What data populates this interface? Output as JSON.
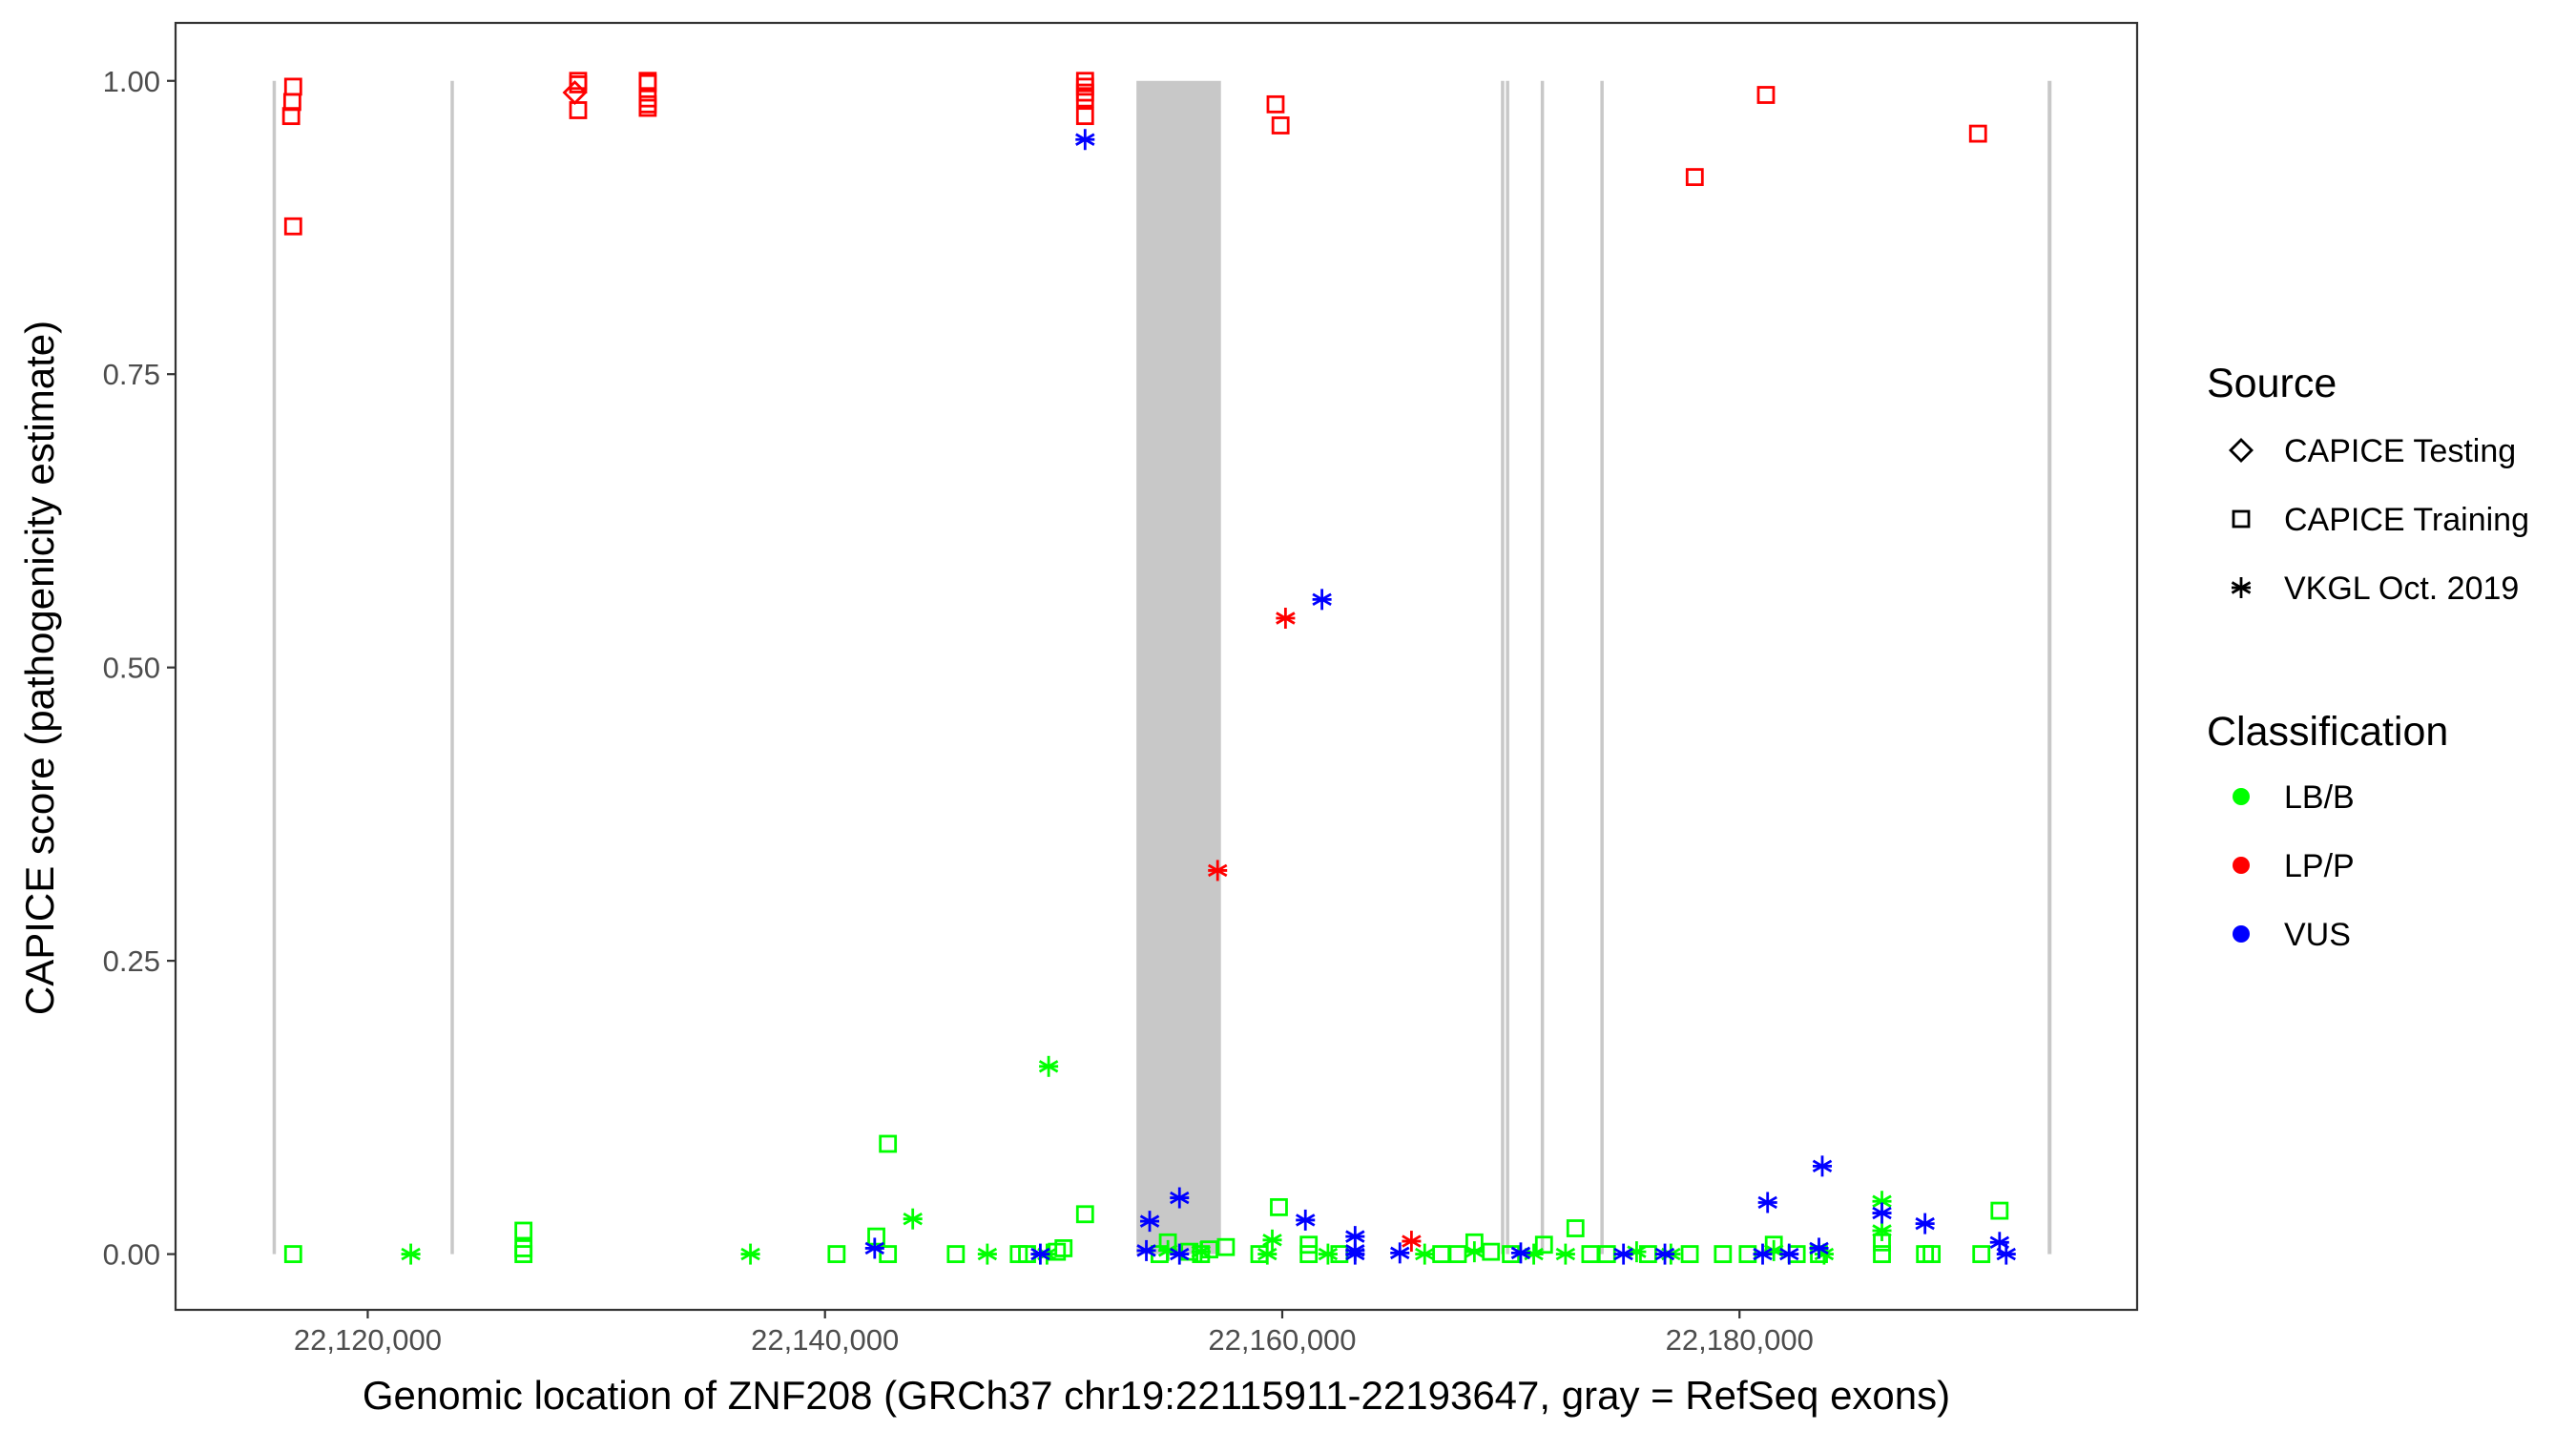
{
  "chart_data": {
    "type": "scatter",
    "xlabel": "Genomic location of ZNF208 (GRCh37 chr19:22115911-22193647, gray = RefSeq exons)",
    "ylabel": "CAPICE score (pathogenicity estimate)",
    "xlim": [
      22111594,
      22197391
    ],
    "ylim": [
      -0.0475,
      1.0494
    ],
    "x_ticks": [
      22120000,
      22140000,
      22160000,
      22180000
    ],
    "x_tick_labels": [
      "22,120,000",
      "22,140,000",
      "22,160,000",
      "22,180,000"
    ],
    "y_ticks": [
      0,
      0.25,
      0.5,
      0.75,
      1.0
    ],
    "y_tick_labels": [
      "0.00",
      "0.25",
      "0.50",
      "0.75",
      "1.00"
    ],
    "grid": false,
    "exon_color": "#c8c8c8",
    "exons": [
      [
        22115911,
        22115911
      ],
      [
        22123696,
        22123696
      ],
      [
        22153623,
        22157319
      ],
      [
        22169638,
        22169638
      ],
      [
        22169855,
        22169855
      ],
      [
        22171377,
        22171377
      ],
      [
        22173986,
        22173986
      ],
      [
        22193478,
        22193647
      ]
    ],
    "legend_placement": "right",
    "legend": {
      "source_title": "Source",
      "sources": [
        {
          "label": "CAPICE Testing",
          "shape": "diamond"
        },
        {
          "label": "CAPICE Training",
          "shape": "square"
        },
        {
          "label": "VKGL Oct. 2019",
          "shape": "asterisk"
        }
      ],
      "class_title": "Classification",
      "classes": [
        {
          "label": "LB/B",
          "color": "#00ff00"
        },
        {
          "label": "LP/P",
          "color": "#ff0000"
        },
        {
          "label": "VUS",
          "color": "#0000ff"
        }
      ]
    },
    "series": [
      {
        "source": "CAPICE Training",
        "classification": "LP/P",
        "points": [
          [
            22116739,
            0.995
          ],
          [
            22116700,
            0.982
          ],
          [
            22116650,
            0.97
          ],
          [
            22116739,
            0.876
          ],
          [
            22129203,
            1.0
          ],
          [
            22129203,
            0.997
          ],
          [
            22129203,
            0.975
          ],
          [
            22132246,
            1.0
          ],
          [
            22132246,
            0.998
          ],
          [
            22132246,
            0.985
          ],
          [
            22132246,
            0.98
          ],
          [
            22132246,
            0.977
          ],
          [
            22151375,
            1.0
          ],
          [
            22151375,
            0.995
          ],
          [
            22151375,
            0.99
          ],
          [
            22151375,
            0.985
          ],
          [
            22151375,
            0.97
          ],
          [
            22159708,
            0.98
          ],
          [
            22159925,
            0.962
          ],
          [
            22178041,
            0.918
          ],
          [
            22181157,
            0.988
          ],
          [
            22190432,
            0.955
          ]
        ]
      },
      {
        "source": "CAPICE Testing",
        "classification": "LP/P",
        "points": [
          [
            22129058,
            0.99
          ]
        ]
      },
      {
        "source": "CAPICE Training",
        "classification": "LB/B",
        "points": [
          [
            22116739,
            0
          ],
          [
            22126812,
            0.02
          ],
          [
            22126812,
            0.005
          ],
          [
            22126812,
            0
          ],
          [
            22140507,
            0
          ],
          [
            22142246,
            0.015
          ],
          [
            22142752,
            0.094
          ],
          [
            22142752,
            0
          ],
          [
            22145723,
            0
          ],
          [
            22148477,
            0
          ],
          [
            22148839,
            0
          ],
          [
            22150143,
            0.002
          ],
          [
            22150433,
            0.005
          ],
          [
            22151375,
            0.034
          ],
          [
            22154635,
            0
          ],
          [
            22154997,
            0.01
          ],
          [
            22155940,
            0.002
          ],
          [
            22156447,
            0
          ],
          [
            22156809,
            0.004
          ],
          [
            22157534,
            0.006
          ],
          [
            22159000,
            0
          ],
          [
            22159853,
            0.04
          ],
          [
            22161157,
            0.008
          ],
          [
            22161157,
            0
          ],
          [
            22162500,
            0
          ],
          [
            22166955,
            0
          ],
          [
            22167679,
            0
          ],
          [
            22168404,
            0.01
          ],
          [
            22169129,
            0.002
          ],
          [
            22170000,
            0
          ],
          [
            22171447,
            0.008
          ],
          [
            22172823,
            0.022
          ],
          [
            22173475,
            0
          ],
          [
            22174200,
            0
          ],
          [
            22176000,
            0
          ],
          [
            22177823,
            0
          ],
          [
            22179273,
            0
          ],
          [
            22180360,
            0
          ],
          [
            22181500,
            0.008
          ],
          [
            22182500,
            0
          ],
          [
            22183475,
            0
          ],
          [
            22186229,
            0.01
          ],
          [
            22186229,
            0
          ],
          [
            22188113,
            0
          ],
          [
            22188403,
            0
          ],
          [
            22190577,
            0
          ],
          [
            22191374,
            0.037
          ]
        ]
      },
      {
        "source": "VKGL Oct. 2019",
        "classification": "LB/B",
        "points": [
          [
            22121884,
            0
          ],
          [
            22136739,
            0
          ],
          [
            22143839,
            0.03
          ],
          [
            22147100,
            0
          ],
          [
            22149709,
            0
          ],
          [
            22149781,
            0.16
          ],
          [
            22155000,
            0.003
          ],
          [
            22156447,
            0.002
          ],
          [
            22159563,
            0.012
          ],
          [
            22159346,
            0
          ],
          [
            22162000,
            0
          ],
          [
            22166230,
            0
          ],
          [
            22168404,
            0.002
          ],
          [
            22171000,
            0
          ],
          [
            22172389,
            0
          ],
          [
            22175500,
            0.002
          ],
          [
            22177000,
            0
          ],
          [
            22181500,
            0.003
          ],
          [
            22183700,
            0
          ],
          [
            22186229,
            0.045
          ],
          [
            22186229,
            0.02
          ]
        ]
      },
      {
        "source": "VKGL Oct. 2019",
        "classification": "VUS",
        "points": [
          [
            22142174,
            0.005
          ],
          [
            22149419,
            0
          ],
          [
            22151375,
            0.95
          ],
          [
            22154056,
            0.003
          ],
          [
            22154201,
            0.028
          ],
          [
            22155505,
            0.048
          ],
          [
            22155505,
            0
          ],
          [
            22161012,
            0.029
          ],
          [
            22161737,
            0.558
          ],
          [
            22163186,
            0.015
          ],
          [
            22163186,
            0.003
          ],
          [
            22163186,
            0
          ],
          [
            22165144,
            0.001
          ],
          [
            22170432,
            0.001
          ],
          [
            22174925,
            0
          ],
          [
            22176736,
            0
          ],
          [
            22181012,
            0
          ],
          [
            22181229,
            0.044
          ],
          [
            22182171,
            0
          ],
          [
            22183475,
            0.005
          ],
          [
            22183620,
            0.075
          ],
          [
            22186229,
            0.035
          ],
          [
            22188113,
            0.026
          ],
          [
            22191374,
            0.01
          ],
          [
            22191664,
            0
          ]
        ]
      },
      {
        "source": "VKGL Oct. 2019",
        "classification": "LP/P",
        "points": [
          [
            22157172,
            0.327
          ],
          [
            22160142,
            0.542
          ],
          [
            22165651,
            0.011
          ]
        ]
      }
    ]
  }
}
